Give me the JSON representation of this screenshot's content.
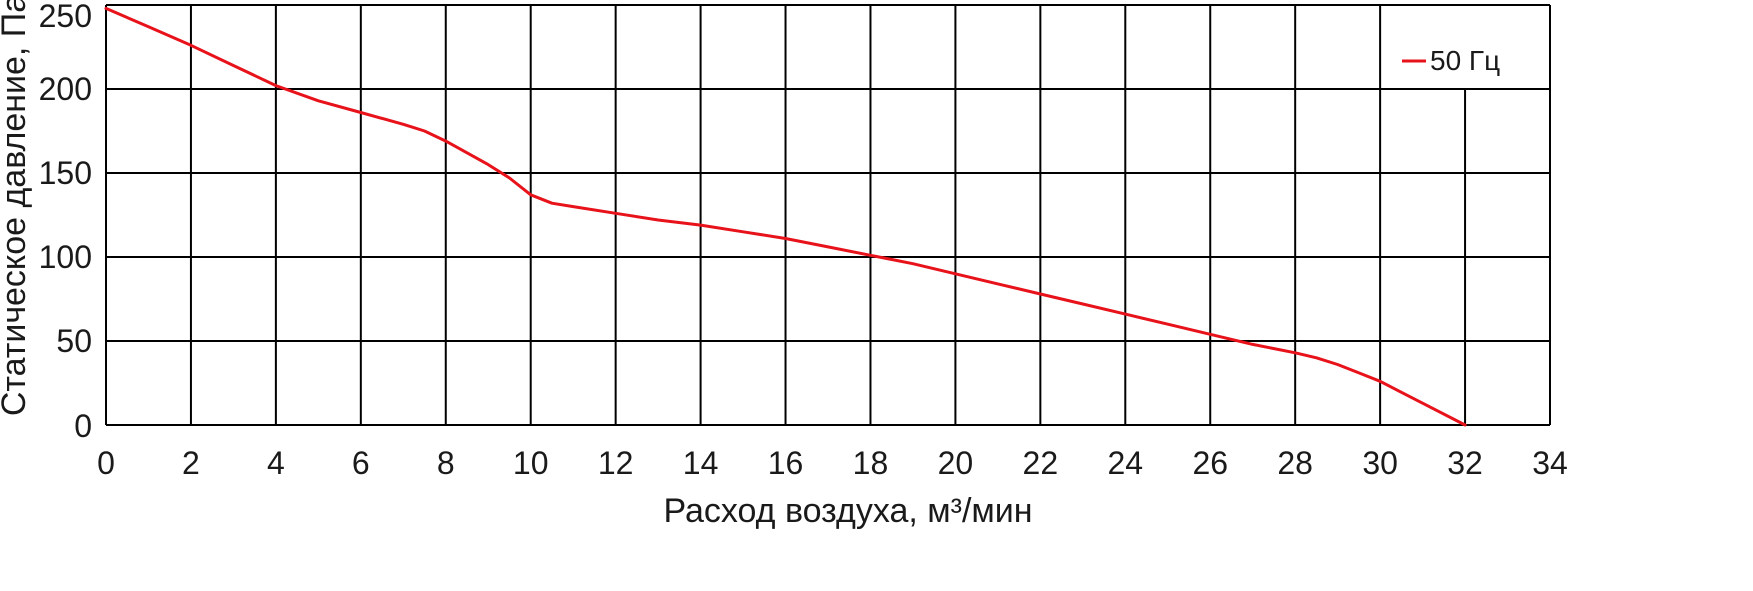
{
  "chart_data": {
    "type": "line",
    "xlabel": "Расход воздуха, м³/мин",
    "ylabel": "Статическое давление, Па",
    "xlim": [
      0,
      34
    ],
    "ylim": [
      0,
      250
    ],
    "x_ticks": [
      0,
      2,
      4,
      6,
      8,
      10,
      12,
      14,
      16,
      18,
      20,
      22,
      24,
      26,
      28,
      30,
      32,
      34
    ],
    "y_ticks": [
      0,
      50,
      100,
      150,
      200,
      250
    ],
    "grid": true,
    "legend_position": "top-right",
    "colors": {
      "series": "#e8121a",
      "grid": "#000000",
      "background": "#ffffff"
    },
    "series": [
      {
        "name": "50 Гц",
        "x": [
          0,
          1,
          2,
          3,
          4,
          5,
          6,
          7,
          7.5,
          8,
          8.5,
          9,
          9.5,
          10,
          10.5,
          11,
          12,
          13,
          14,
          15,
          16,
          17,
          18,
          19,
          20,
          21,
          22,
          23,
          24,
          25,
          26,
          27,
          28,
          28.5,
          29,
          29.5,
          30,
          31,
          32
        ],
        "y": [
          248,
          237,
          226,
          214,
          202,
          193,
          186,
          179,
          175,
          169,
          162,
          155,
          147,
          137,
          132,
          130,
          126,
          122,
          119,
          115,
          111,
          106,
          101,
          96,
          90,
          84,
          78,
          72,
          66,
          60,
          54,
          48,
          43,
          40,
          36,
          31,
          26,
          13,
          0
        ]
      }
    ]
  }
}
